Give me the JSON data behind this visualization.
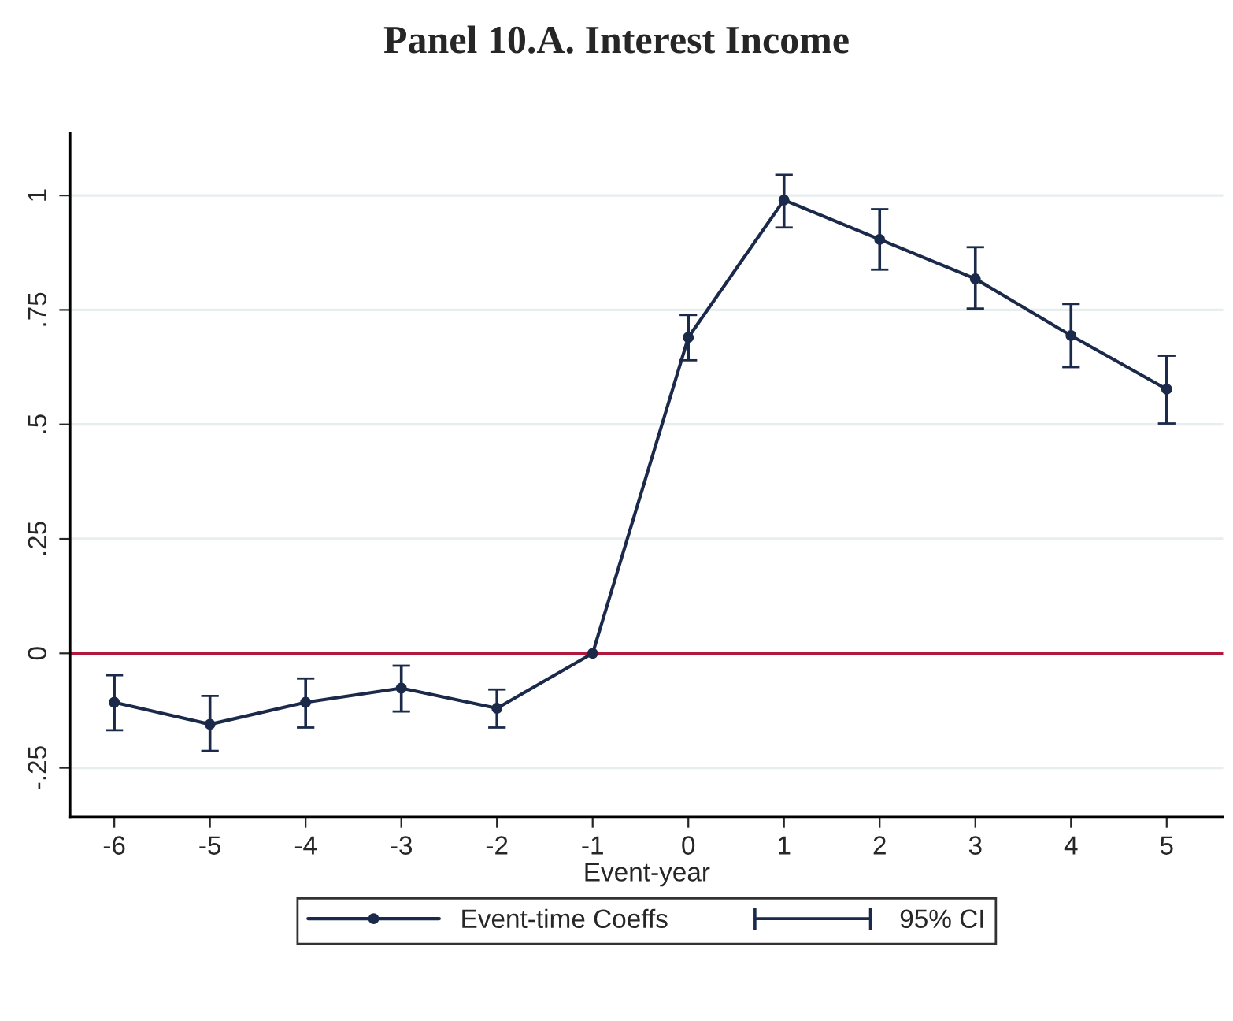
{
  "chart_data": {
    "type": "line",
    "title": "Panel 10.A. Interest Income",
    "xlabel": "Event-year",
    "x": [
      -6,
      -5,
      -4,
      -3,
      -2,
      -1,
      0,
      1,
      2,
      3,
      4,
      5
    ],
    "series": [
      {
        "name": "Event-time Coeffs",
        "color": "#1b2a4a",
        "values": [
          -0.107,
          -0.155,
          -0.107,
          -0.076,
          -0.12,
          0,
          0.69,
          0.99,
          0.904,
          0.818,
          0.694,
          0.577
        ],
        "errors": [
          [
            -0.168,
            -0.048
          ],
          [
            -0.213,
            -0.093
          ],
          [
            -0.162,
            -0.055
          ],
          [
            -0.127,
            -0.027
          ],
          [
            -0.162,
            -0.079
          ],
          null,
          [
            0.64,
            0.739
          ],
          [
            0.93,
            1.045
          ],
          [
            0.838,
            0.97
          ],
          [
            0.753,
            0.887
          ],
          [
            0.625,
            0.763
          ],
          [
            0.502,
            0.65
          ]
        ]
      }
    ],
    "annotations": [
      "95% CI"
    ],
    "xlim": [
      -6.46,
      5.59
    ],
    "ylim": [
      -0.357,
      1.137
    ],
    "xticks": [
      -6,
      -5,
      -4,
      -3,
      -2,
      -1,
      0,
      1,
      2,
      3,
      4,
      5
    ],
    "yticks": [
      {
        "value": -0.25,
        "label": "-.25"
      },
      0,
      {
        "value": 0.25,
        "label": ".25"
      },
      {
        "value": 0.5,
        "label": ".5"
      },
      {
        "value": 0.75,
        "label": ".75"
      },
      1
    ],
    "ref_lines": [
      {
        "axis": "y",
        "value": 0,
        "color": "#b0193c"
      }
    ],
    "grid": "y",
    "legend": "bottom",
    "marker": "circle",
    "line_style": "solid"
  }
}
